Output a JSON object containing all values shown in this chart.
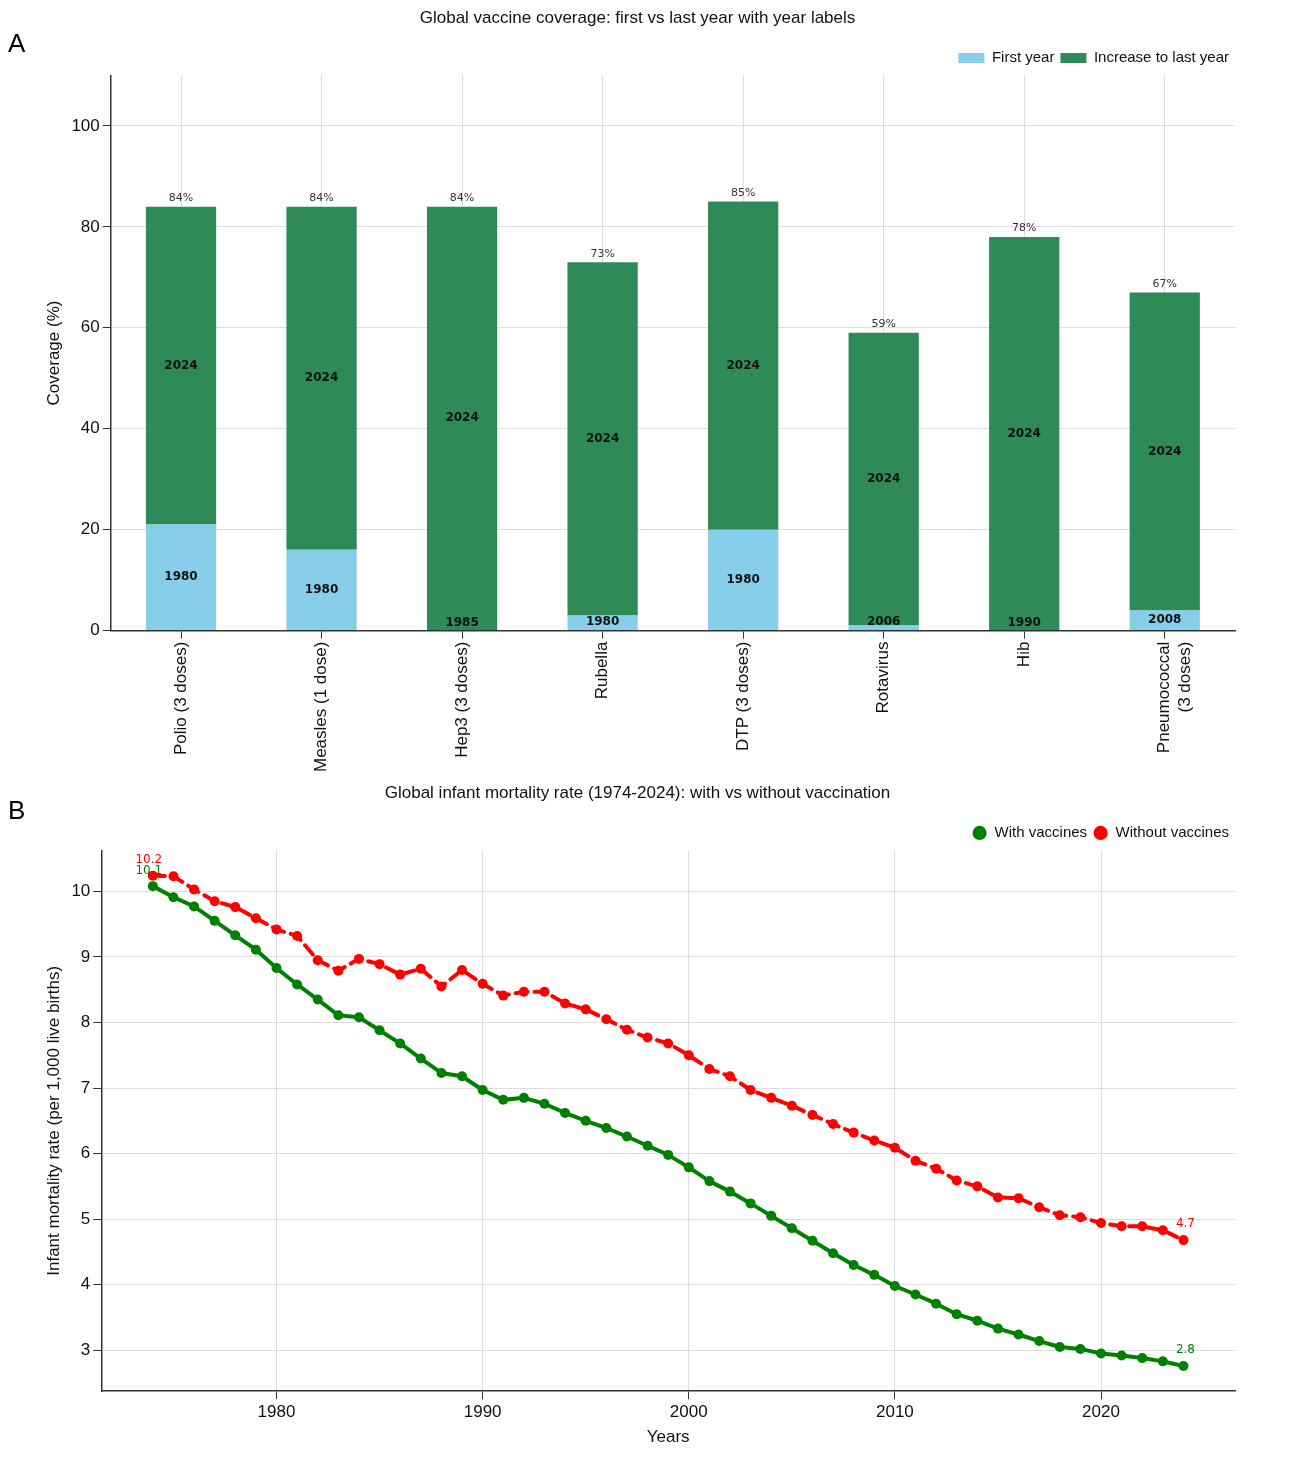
{
  "chart_data": [
    {
      "type": "bar",
      "title": "Global vaccine coverage: first vs last year with year labels",
      "ylabel": "Coverage (%)",
      "annotations": [
        "A",
        "1980",
        "1980",
        "1985",
        "1980",
        "1980",
        "2006",
        "1990",
        "2008",
        "2024",
        "2024",
        "2024",
        "2024",
        "2024",
        "2024",
        "2024",
        "2024"
      ],
      "categories": [
        "Polio (3 doses)",
        "Measles (1 dose)",
        "Hep3 (3 doses)",
        "Rubella",
        "DTP (3 doses)",
        "Rotavirus",
        "Hib",
        "Pneumococcal\n(3 doses)"
      ],
      "stacked": true,
      "series": [
        {
          "name": "First year",
          "color": "#87ceeb",
          "values": [
            21,
            16,
            0,
            3,
            20,
            1,
            0,
            4
          ]
        },
        {
          "name": "Increase to last year",
          "color": "#2e8b57",
          "values": [
            63,
            68,
            84,
            70,
            65,
            58,
            78,
            63
          ]
        }
      ],
      "totals": [
        "84%",
        "84%",
        "84%",
        "73%",
        "85%",
        "59%",
        "78%",
        "67%"
      ],
      "ylim": [
        0,
        110
      ],
      "yticks": [
        0,
        20,
        40,
        60,
        80,
        100
      ],
      "grid": true,
      "legend": "top right"
    },
    {
      "type": "line",
      "title": "Global infant mortality rate (1974-2024): with vs without vaccination",
      "xlabel": "Years",
      "ylabel": "Infant mortality rate (per 1,000 live births)",
      "annotations": [
        "B"
      ],
      "x": [
        1974,
        1975,
        1976,
        1977,
        1978,
        1979,
        1980,
        1981,
        1982,
        1983,
        1984,
        1985,
        1986,
        1987,
        1988,
        1989,
        1990,
        1991,
        1992,
        1993,
        1994,
        1995,
        1996,
        1997,
        1998,
        1999,
        2000,
        2001,
        2002,
        2003,
        2004,
        2005,
        2006,
        2007,
        2008,
        2009,
        2010,
        2011,
        2012,
        2013,
        2014,
        2015,
        2016,
        2017,
        2018,
        2019,
        2020,
        2021,
        2022,
        2023,
        2024
      ],
      "series": [
        {
          "name": "With vaccines",
          "color": "#008000",
          "line_style": "solid",
          "values": [
            10.08,
            9.91,
            9.77,
            9.55,
            9.33,
            9.11,
            8.83,
            8.58,
            8.35,
            8.11,
            8.08,
            7.88,
            7.68,
            7.45,
            7.23,
            7.18,
            6.97,
            6.82,
            6.85,
            6.76,
            6.62,
            6.5,
            6.39,
            6.26,
            6.12,
            5.98,
            5.79,
            5.58,
            5.42,
            5.24,
            5.05,
            4.86,
            4.67,
            4.48,
            4.3,
            4.15,
            3.98,
            3.85,
            3.71,
            3.55,
            3.45,
            3.33,
            3.24,
            3.14,
            3.05,
            3.02,
            2.95,
            2.92,
            2.88,
            2.83,
            2.76
          ],
          "value_labels": [
            "10.1",
            null,
            null,
            null,
            null,
            null,
            null,
            null,
            null,
            null,
            null,
            null,
            null,
            null,
            null,
            null,
            null,
            null,
            null,
            null,
            null,
            null,
            null,
            null,
            null,
            null,
            null,
            null,
            null,
            null,
            null,
            null,
            null,
            null,
            null,
            null,
            null,
            null,
            null,
            null,
            null,
            null,
            null,
            null,
            null,
            null,
            null,
            null,
            null,
            null,
            "2.8"
          ]
        },
        {
          "name": "Without vaccines",
          "color": "#ff0000",
          "line_style": "dashed",
          "values": [
            10.24,
            10.23,
            10.03,
            9.85,
            9.76,
            9.59,
            9.42,
            9.32,
            8.95,
            8.79,
            8.97,
            8.89,
            8.73,
            8.82,
            8.55,
            8.8,
            8.59,
            8.41,
            8.47,
            8.47,
            8.29,
            8.2,
            8.05,
            7.89,
            7.77,
            7.68,
            7.5,
            7.29,
            7.18,
            6.97,
            6.85,
            6.73,
            6.59,
            6.45,
            6.32,
            6.2,
            6.09,
            5.89,
            5.77,
            5.59,
            5.5,
            5.33,
            5.32,
            5.18,
            5.06,
            5.03,
            4.94,
            4.89,
            4.89,
            4.83,
            4.68
          ],
          "value_labels": [
            "10.2",
            null,
            null,
            null,
            null,
            null,
            null,
            null,
            null,
            null,
            null,
            null,
            null,
            null,
            null,
            null,
            null,
            null,
            null,
            null,
            null,
            null,
            null,
            null,
            null,
            null,
            null,
            null,
            null,
            null,
            null,
            null,
            null,
            null,
            null,
            null,
            null,
            null,
            null,
            null,
            null,
            null,
            null,
            null,
            null,
            null,
            null,
            null,
            null,
            null,
            "4.7"
          ]
        }
      ],
      "marker": "circle",
      "xlim": [
        1971.5,
        2026.5
      ],
      "xticks": [
        1980,
        1990,
        2000,
        2010,
        2020
      ],
      "ylim": [
        2.375,
        10.625
      ],
      "yticks": [
        3,
        4,
        5,
        6,
        7,
        8,
        9,
        10
      ],
      "grid": true,
      "legend": "top right"
    }
  ]
}
